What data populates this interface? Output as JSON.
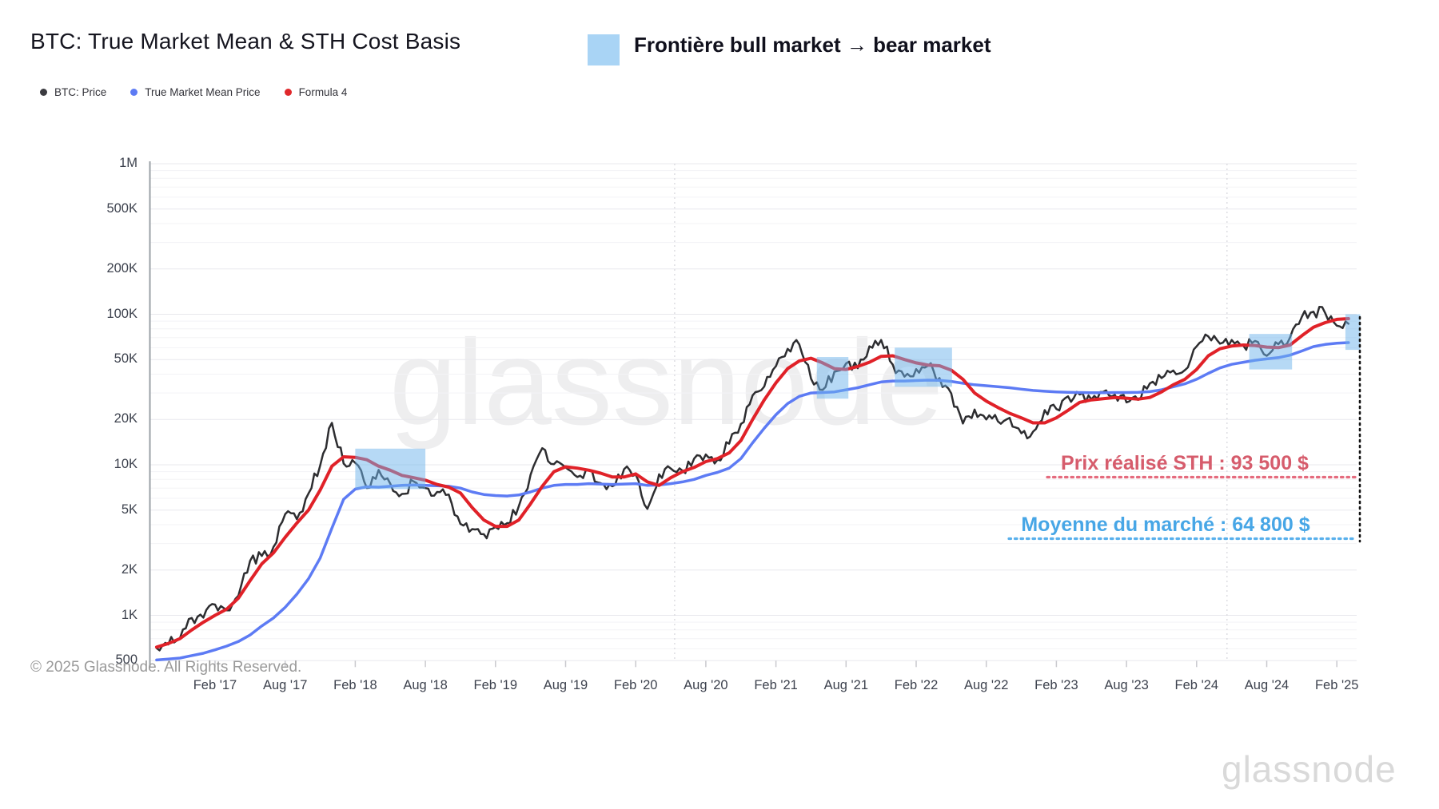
{
  "header": {
    "title": "BTC: True Market Mean & STH Cost Basis",
    "highlight_label": "Frontière bull market → bear market",
    "highlight_color": "#a9d4f5"
  },
  "legend": {
    "items": [
      {
        "label": "BTC: Price",
        "color": "#3b3b40"
      },
      {
        "label": "True Market Mean Price",
        "color": "#5d7bf4"
      },
      {
        "label": "Formula 4",
        "color": "#e0282b"
      }
    ]
  },
  "watermark": "glassnode",
  "annotations": {
    "sth": {
      "label": "Prix réalisé STH : 93 500 $",
      "value": 93500,
      "color": "#d65c6c",
      "line_color": "#e56b7e"
    },
    "mean": {
      "label": "Moyenne du marché : 64 800 $",
      "value": 64800,
      "color": "#47a6e6",
      "line_color": "#59b0ec"
    }
  },
  "footer": {
    "copyright": "© 2025 Glassnode. All Rights Reserved.",
    "logo": "glassnode"
  },
  "chart_data": {
    "type": "line",
    "yscale": "log",
    "ylim": [
      500,
      1000000
    ],
    "grid": true,
    "y_ticks": [
      {
        "label": "1M",
        "value": 1000000
      },
      {
        "label": "500K",
        "value": 500000
      },
      {
        "label": "200K",
        "value": 200000
      },
      {
        "label": "100K",
        "value": 100000
      },
      {
        "label": "50K",
        "value": 50000
      },
      {
        "label": "20K",
        "value": 20000
      },
      {
        "label": "10K",
        "value": 10000
      },
      {
        "label": "5K",
        "value": 5000
      },
      {
        "label": "2K",
        "value": 2000
      },
      {
        "label": "1K",
        "value": 1000
      },
      {
        "label": "500",
        "value": 500
      }
    ],
    "x_start": "2016-09",
    "x_step_months": 1,
    "x_ticks": [
      {
        "label": "Feb '17",
        "date": "2017-02"
      },
      {
        "label": "Aug '17",
        "date": "2017-08"
      },
      {
        "label": "Feb '18",
        "date": "2018-02"
      },
      {
        "label": "Aug '18",
        "date": "2018-08"
      },
      {
        "label": "Feb '19",
        "date": "2019-02"
      },
      {
        "label": "Aug '19",
        "date": "2019-08"
      },
      {
        "label": "Feb '20",
        "date": "2020-02"
      },
      {
        "label": "Aug '20",
        "date": "2020-08"
      },
      {
        "label": "Feb '21",
        "date": "2021-02"
      },
      {
        "label": "Aug '21",
        "date": "2021-08"
      },
      {
        "label": "Feb '22",
        "date": "2022-02"
      },
      {
        "label": "Aug '22",
        "date": "2022-08"
      },
      {
        "label": "Feb '23",
        "date": "2023-02"
      },
      {
        "label": "Aug '23",
        "date": "2023-08"
      },
      {
        "label": "Feb '24",
        "date": "2024-02"
      },
      {
        "label": "Aug '24",
        "date": "2024-08"
      },
      {
        "label": "Feb '25",
        "date": "2025-02"
      }
    ],
    "series": [
      {
        "name": "BTC: Price",
        "color": "#2d2d30",
        "width": 2.5,
        "jagged": true,
        "values": [
          605,
          640,
          705,
          960,
          965,
          1180,
          1080,
          1350,
          2300,
          2480,
          2850,
          4700,
          4350,
          6450,
          9900,
          19000,
          10200,
          10300,
          7000,
          9250,
          7500,
          6400,
          7750,
          7000,
          6600,
          6350,
          4050,
          3740,
          3460,
          3860,
          4100,
          5320,
          8560,
          12900,
          10100,
          9600,
          8300,
          9200,
          7550,
          7200,
          9350,
          8600,
          5100,
          8650,
          9450,
          9140,
          11000,
          11700,
          10800,
          13800,
          18700,
          28900,
          33100,
          45200,
          58900,
          63000,
          37300,
          31500,
          41500,
          47100,
          43800,
          61300,
          67500,
          46200,
          38500,
          43200,
          45500,
          37700,
          29800,
          18800,
          23300,
          20000,
          19400,
          20500,
          16200,
          16600,
          23100,
          23500,
          28500,
          29300,
          27200,
          30500,
          29200,
          26000,
          27000,
          34700,
          37700,
          42300,
          42600,
          61200,
          71300,
          63800,
          67500,
          61800,
          66500,
          53000,
          63300,
          70200,
          96000,
          104000,
          102000,
          84000,
          86500
        ]
      },
      {
        "name": "True Market Mean Price",
        "color": "#5d7bf4",
        "width": 3.5,
        "jagged": false,
        "values": [
          505,
          512,
          520,
          540,
          560,
          590,
          625,
          670,
          740,
          850,
          960,
          1130,
          1380,
          1750,
          2400,
          3800,
          5900,
          6900,
          7150,
          7100,
          7200,
          7300,
          7350,
          7300,
          7250,
          7200,
          7000,
          6600,
          6350,
          6250,
          6200,
          6300,
          6600,
          7000,
          7300,
          7400,
          7400,
          7500,
          7450,
          7400,
          7450,
          7500,
          7300,
          7350,
          7500,
          7700,
          8000,
          8500,
          8900,
          9500,
          11000,
          14000,
          17500,
          21500,
          25500,
          28500,
          30000,
          30200,
          30500,
          31500,
          32500,
          34000,
          35500,
          36000,
          36000,
          36300,
          36500,
          36400,
          35800,
          34800,
          34000,
          33500,
          33000,
          32500,
          31800,
          31200,
          30800,
          30500,
          30300,
          30200,
          30100,
          30100,
          30200,
          30200,
          30300,
          30600,
          31500,
          33000,
          34500,
          37000,
          40500,
          44000,
          46500,
          48000,
          49500,
          50500,
          51500,
          53500,
          57000,
          61000,
          63000,
          64300,
          64800
        ]
      },
      {
        "name": "Formula 4",
        "color": "#e02128",
        "width": 4,
        "jagged": false,
        "values": [
          615,
          650,
          700,
          800,
          900,
          1000,
          1100,
          1300,
          1700,
          2200,
          2600,
          3300,
          4100,
          5000,
          6800,
          9800,
          11300,
          11200,
          10800,
          9800,
          9200,
          8500,
          8200,
          7900,
          7400,
          7100,
          6500,
          5200,
          4300,
          3900,
          3900,
          4300,
          5500,
          7200,
          9000,
          9700,
          9500,
          9200,
          8800,
          8300,
          8300,
          8700,
          7700,
          7300,
          8200,
          9000,
          9600,
          10500,
          11000,
          12000,
          14500,
          20000,
          27000,
          35000,
          43500,
          49000,
          51000,
          47500,
          43500,
          43000,
          45000,
          48000,
          52500,
          53000,
          50000,
          47500,
          46000,
          45500,
          42500,
          37000,
          30000,
          26500,
          24000,
          22000,
          20500,
          19000,
          19000,
          20500,
          23000,
          26000,
          27000,
          27500,
          28000,
          27700,
          27300,
          28000,
          30500,
          34000,
          37000,
          43000,
          53000,
          59000,
          61500,
          62500,
          62000,
          60500,
          60000,
          62500,
          72000,
          82000,
          88000,
          92500,
          93500
        ]
      }
    ],
    "highlight_regions": [
      {
        "from": "2018-02-01",
        "to": "2018-08-01",
        "low": 6900,
        "high": 12800
      },
      {
        "from": "2021-05-16",
        "to": "2021-08-07",
        "low": 27500,
        "high": 52000
      },
      {
        "from": "2021-12-06",
        "to": "2022-05-03",
        "low": 33000,
        "high": 60000
      },
      {
        "from": "2024-06-16",
        "to": "2024-10-06",
        "low": 43000,
        "high": 74000
      },
      {
        "from": "2025-02-23",
        "to": "2025-04-01",
        "low": 58000,
        "high": 100000
      }
    ],
    "highlight_color": "rgba(110,180,235,0.5)",
    "event_markers": [
      {
        "name": "halving-2020",
        "date": "2020-05-11"
      },
      {
        "name": "halving-2024",
        "date": "2024-04-19"
      }
    ]
  }
}
